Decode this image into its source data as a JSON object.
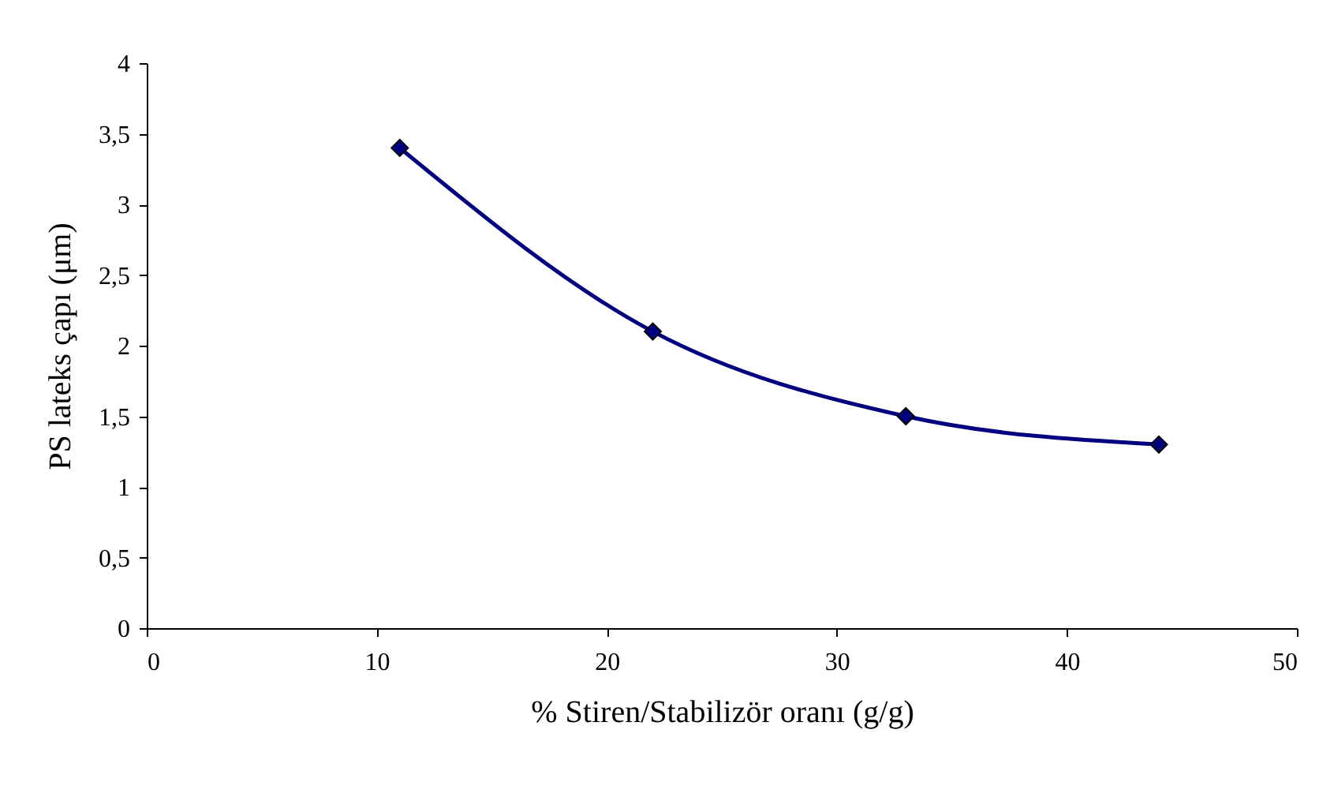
{
  "chart_data": {
    "type": "line",
    "xlabel": "% Stiren/Stabilizör oranı (g/g)",
    "ylabel": "PS lateks çapı (μm)",
    "x": [
      11,
      22,
      33,
      44
    ],
    "series": [
      {
        "color": "#000080",
        "values": [
          3.4,
          2.1,
          1.5,
          1.3
        ]
      }
    ],
    "xlim": [
      0,
      50
    ],
    "xticks": [
      0,
      10,
      20,
      30,
      40,
      50
    ],
    "ylim": [
      0,
      4
    ],
    "yticks": [
      0,
      {
        "value": 0.5,
        "label": "0,5"
      },
      1,
      {
        "value": 1.5,
        "label": "1,5"
      },
      2,
      {
        "value": 2.5,
        "label": "2,5"
      },
      3,
      {
        "value": 3.5,
        "label": "3,5"
      },
      4
    ],
    "marker": "diamond",
    "line_style": "solid",
    "grid": false,
    "legend": false
  }
}
